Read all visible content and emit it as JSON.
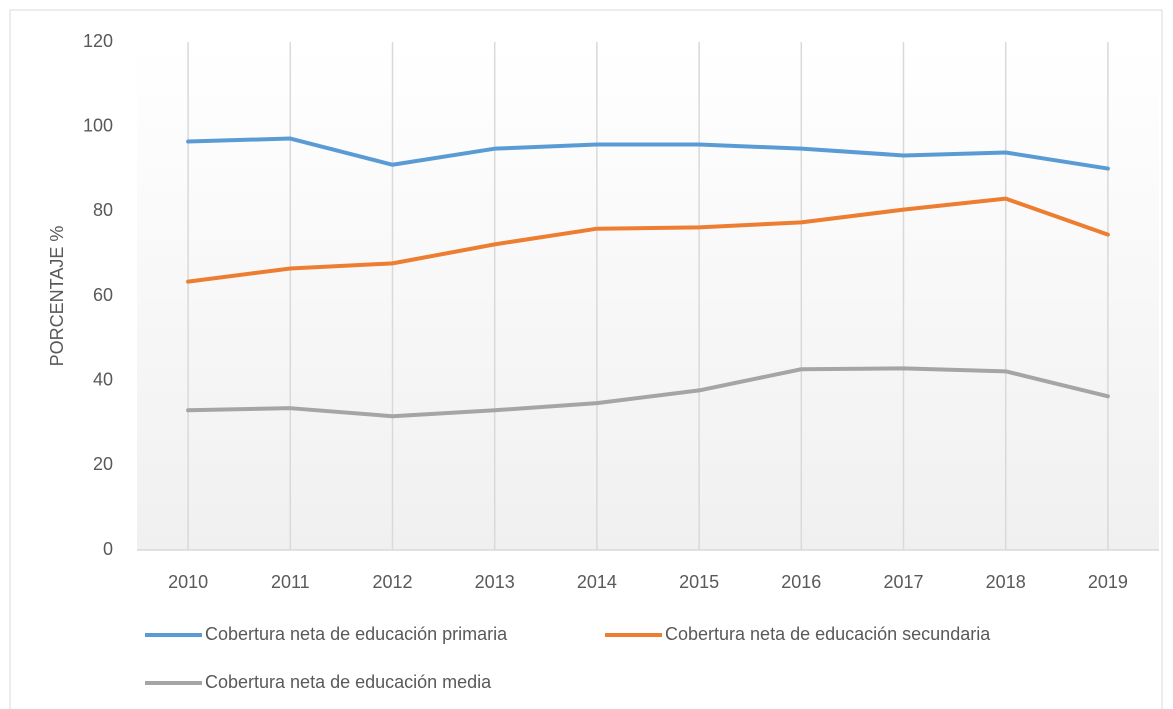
{
  "chart_data": {
    "type": "line",
    "y_label": "PORCENTAJE %",
    "categories": [
      "2010",
      "2011",
      "2012",
      "2013",
      "2014",
      "2015",
      "2016",
      "2017",
      "2018",
      "2019"
    ],
    "series": [
      {
        "name": "Cobertura neta de educación primaria",
        "color": "#5b9bd5",
        "values": [
          96.5,
          97.2,
          91.0,
          94.8,
          95.8,
          95.8,
          94.8,
          93.2,
          93.9,
          90.1
        ]
      },
      {
        "name": "Cobertura neta de educación secundaria",
        "color": "#ed7d31",
        "values": [
          63.4,
          66.5,
          67.7,
          72.2,
          75.9,
          76.2,
          77.4,
          80.4,
          83.0,
          74.5
        ]
      },
      {
        "name": "Cobertura neta de educación media",
        "color": "#a5a5a5",
        "values": [
          33.0,
          33.5,
          31.6,
          33.0,
          34.7,
          37.7,
          42.7,
          42.9,
          42.2,
          36.3
        ]
      }
    ],
    "ylim": [
      0,
      120
    ],
    "yticks": [
      0,
      20,
      40,
      60,
      80,
      100,
      120
    ],
    "grid": true
  }
}
